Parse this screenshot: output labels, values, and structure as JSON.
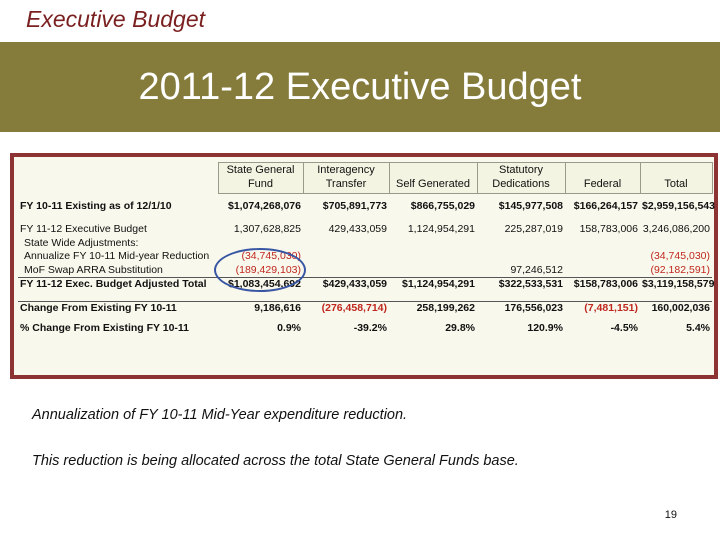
{
  "header": {
    "label": "Executive Budget",
    "title": "2011-12 Executive Budget"
  },
  "table": {
    "columns": [
      "State General Fund",
      "Interagency Transfer",
      "Self Generated",
      "Statutory Dedications",
      "Federal",
      "Total"
    ],
    "rows": [
      {
        "label": "FY 10-11 Existing as of 12/1/10",
        "bold": true,
        "values": [
          "$1,074,268,076",
          "$705,891,773",
          "$866,755,029",
          "$145,977,508",
          "$166,264,157",
          "$2,959,156,543"
        ]
      },
      {
        "label": "FY 11-12 Executive Budget",
        "bold": false,
        "values": [
          "1,307,628,825",
          "429,433,059",
          "1,124,954,291",
          "225,287,019",
          "158,783,006",
          "3,246,086,200"
        ]
      },
      {
        "label": "State Wide Adjustments:",
        "bold": false,
        "values": [
          "",
          "",
          "",
          "",
          "",
          ""
        ]
      },
      {
        "label": "Annualize FY 10-11 Mid-year Reduction",
        "bold": false,
        "values": [
          "(34,745,030)",
          "",
          "",
          "",
          "",
          "(34,745,030)"
        ]
      },
      {
        "label": "MoF Swap ARRA Substitution",
        "bold": false,
        "values": [
          "(189,429,103)",
          "",
          "",
          "97,246,512",
          "",
          "(92,182,591)"
        ]
      },
      {
        "label": "FY 11-12 Exec. Budget Adjusted Total",
        "bold": true,
        "values": [
          "$1,083,454,692",
          "$429,433,059",
          "$1,124,954,291",
          "$322,533,531",
          "$158,783,006",
          "$3,119,158,579"
        ]
      },
      {
        "label": "Change From Existing FY 10-11",
        "bold": true,
        "values": [
          "9,186,616",
          "(276,458,714)",
          "258,199,262",
          "176,556,023",
          "(7,481,151)",
          "160,002,036"
        ]
      },
      {
        "label": "% Change From Existing FY 10-11",
        "bold": true,
        "values": [
          "0.9%",
          "-39.2%",
          "29.8%",
          "120.9%",
          "-4.5%",
          "5.4%"
        ]
      }
    ]
  },
  "notes": {
    "line1": "Annualization of FY 10-11 Mid-Year expenditure reduction.",
    "line2": "This reduction is being allocated across the total State General Funds base."
  },
  "page_number": "19",
  "colors": {
    "banner": "#857b3b",
    "frame": "#8e3333",
    "negative": "#c0271f",
    "oval": "#3856a3",
    "header_label": "#7a1f1f"
  }
}
